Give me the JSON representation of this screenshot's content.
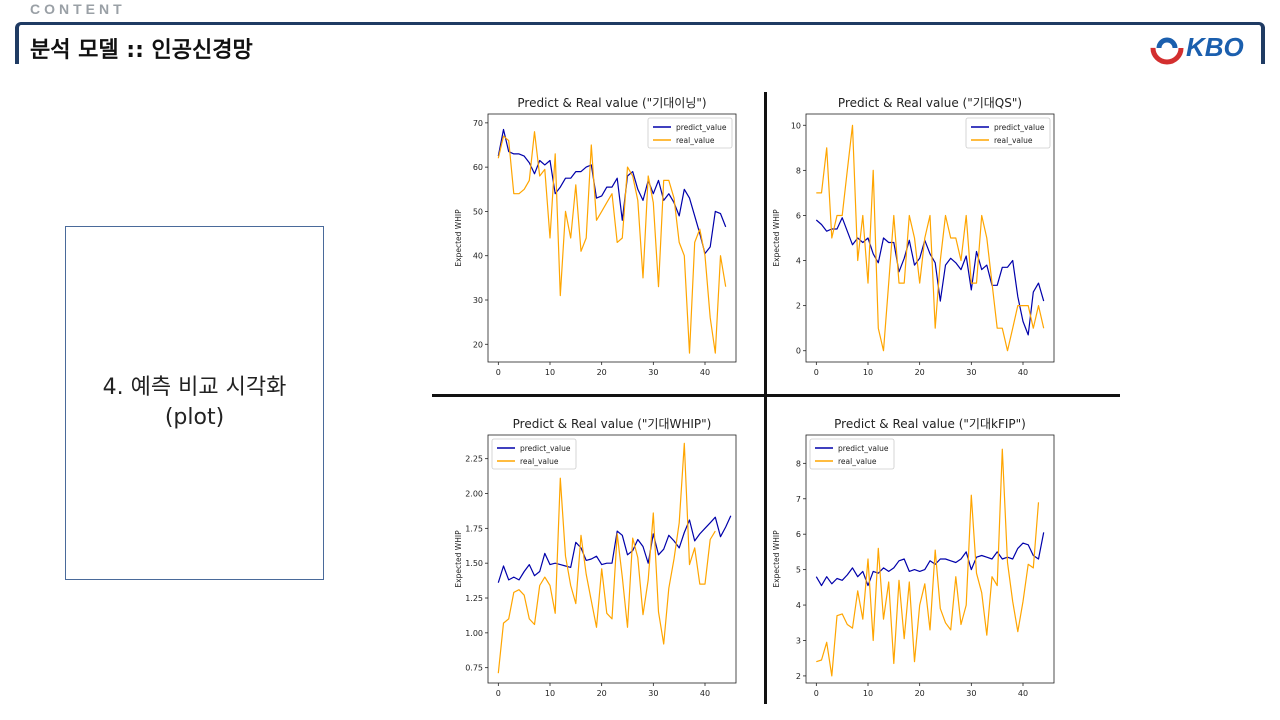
{
  "header": {
    "section_label": "CONTENT",
    "title": "분석 모델 :: 인공신경망",
    "logo_text": "KBO"
  },
  "sidebar": {
    "line1": "4. 예측 비교 시각화",
    "line2": "(plot)"
  },
  "colors": {
    "predict": "#0000aa",
    "real": "#ffa500",
    "header_accent": "#1f3b63"
  },
  "chart_data": [
    {
      "type": "line",
      "title": "Predict & Real value (\"기대이닝\")",
      "xlabel": "",
      "ylabel": "Expected WHIP",
      "xlim": [
        -2,
        46
      ],
      "ylim": [
        16,
        72
      ],
      "xticks": [
        0,
        10,
        20,
        30,
        40
      ],
      "xtick_labels": [
        "0",
        "10",
        "20",
        "30",
        "40"
      ],
      "yticks": [
        20,
        30,
        40,
        50,
        60,
        70
      ],
      "ytick_labels": [
        "20",
        "30",
        "40",
        "50",
        "60",
        "70"
      ],
      "legend": "top-right",
      "series": [
        {
          "name": "predict_value",
          "values": [
            62.5,
            68.5,
            63.5,
            63,
            63,
            62.5,
            61,
            58.5,
            61.5,
            60.5,
            61.5,
            54,
            55.5,
            57.5,
            57.5,
            59,
            59,
            60,
            60.5,
            53,
            53.5,
            55.5,
            55.5,
            57.5,
            48,
            58,
            59,
            55,
            52.5,
            57,
            54,
            57,
            52.5,
            54,
            52,
            49,
            55,
            53,
            49,
            45,
            40.5,
            42,
            50,
            49.5,
            46.5
          ]
        },
        {
          "name": "real_value",
          "values": [
            62,
            67,
            66,
            54,
            54,
            55,
            57,
            68,
            58,
            59.5,
            44,
            63,
            31,
            50,
            44,
            56,
            41,
            44,
            65,
            48,
            50,
            52,
            54,
            43,
            44,
            60,
            58,
            52.5,
            35,
            58,
            52,
            33,
            57,
            57,
            53,
            43,
            40,
            18,
            43,
            46,
            40,
            26,
            18,
            40,
            33
          ]
        }
      ]
    },
    {
      "type": "line",
      "title": "Predict & Real value (\"기대QS\")",
      "xlabel": "",
      "ylabel": "Expected WHIP",
      "xlim": [
        -2,
        46
      ],
      "ylim": [
        -0.5,
        10.5
      ],
      "xticks": [
        0,
        10,
        20,
        30,
        40
      ],
      "xtick_labels": [
        "0",
        "10",
        "20",
        "30",
        "40"
      ],
      "yticks": [
        0,
        2,
        4,
        6,
        8,
        10
      ],
      "ytick_labels": [
        "0",
        "2",
        "4",
        "6",
        "8",
        "10"
      ],
      "legend": "top-right",
      "series": [
        {
          "name": "predict_value",
          "values": [
            5.8,
            5.6,
            5.3,
            5.4,
            5.4,
            5.9,
            5.3,
            4.7,
            5,
            4.8,
            5,
            4.3,
            3.9,
            5,
            4.8,
            4.8,
            3.5,
            4.1,
            4.9,
            3.8,
            4.1,
            4.9,
            4.3,
            3.9,
            2.2,
            3.8,
            4.1,
            3.9,
            3.6,
            4.2,
            2.7,
            4.4,
            3.6,
            3.8,
            2.9,
            2.9,
            3.7,
            3.7,
            4,
            2.4,
            1.3,
            0.7,
            2.6,
            3,
            2.2
          ]
        },
        {
          "name": "real_value",
          "values": [
            7,
            7,
            9,
            5,
            6,
            6,
            8,
            10,
            4,
            6,
            3,
            8,
            1,
            0,
            3,
            6,
            3,
            3,
            6,
            5,
            3,
            5,
            6,
            1,
            4,
            6,
            5,
            5,
            4,
            6,
            3,
            3,
            6,
            5,
            3,
            1,
            1,
            0,
            1,
            2,
            2,
            2,
            1,
            2,
            1
          ]
        }
      ]
    },
    {
      "type": "line",
      "title": "Predict & Real value (\"기대WHIP\")",
      "xlabel": "",
      "ylabel": "Expected WHIP",
      "xlim": [
        -2,
        46
      ],
      "ylim": [
        0.64,
        2.42
      ],
      "xticks": [
        0,
        10,
        20,
        30,
        40
      ],
      "xtick_labels": [
        "0",
        "10",
        "20",
        "30",
        "40"
      ],
      "yticks": [
        0.75,
        1.0,
        1.25,
        1.5,
        1.75,
        2.0,
        2.25
      ],
      "ytick_labels": [
        "0.75",
        "1.00",
        "1.25",
        "1.50",
        "1.75",
        "2.00",
        "2.25"
      ],
      "legend": "top-left",
      "series": [
        {
          "name": "predict_value",
          "values": [
            1.36,
            1.48,
            1.38,
            1.4,
            1.38,
            1.44,
            1.49,
            1.41,
            1.44,
            1.57,
            1.49,
            1.5,
            1.49,
            1.48,
            1.47,
            1.65,
            1.61,
            1.52,
            1.53,
            1.55,
            1.49,
            1.5,
            1.5,
            1.73,
            1.7,
            1.56,
            1.59,
            1.67,
            1.62,
            1.5,
            1.71,
            1.56,
            1.6,
            1.7,
            1.66,
            1.61,
            1.72,
            1.81,
            1.66,
            1.71,
            1.75,
            1.79,
            1.83,
            1.69,
            1.76,
            1.84
          ]
        },
        {
          "name": "real_value",
          "values": [
            0.71,
            1.07,
            1.1,
            1.29,
            1.31,
            1.27,
            1.1,
            1.06,
            1.34,
            1.4,
            1.34,
            1.14,
            2.11,
            1.55,
            1.34,
            1.21,
            1.7,
            1.42,
            1.23,
            1.04,
            1.46,
            1.14,
            1.1,
            1.71,
            1.4,
            1.04,
            1.68,
            1.54,
            1.13,
            1.38,
            1.86,
            1.15,
            0.92,
            1.32,
            1.53,
            1.79,
            2.36,
            1.49,
            1.61,
            1.35,
            1.35,
            1.67,
            1.73
          ]
        }
      ]
    },
    {
      "type": "line",
      "title": "Predict & Real value (\"기대kFIP\")",
      "xlabel": "",
      "ylabel": "Expected WHIP",
      "xlim": [
        -2,
        46
      ],
      "ylim": [
        1.8,
        8.8
      ],
      "xticks": [
        0,
        10,
        20,
        30,
        40
      ],
      "xtick_labels": [
        "0",
        "10",
        "20",
        "30",
        "40"
      ],
      "yticks": [
        2,
        3,
        4,
        5,
        6,
        7,
        8
      ],
      "ytick_labels": [
        "2",
        "3",
        "4",
        "5",
        "6",
        "7",
        "8"
      ],
      "legend": "top-left",
      "series": [
        {
          "name": "predict_value",
          "values": [
            4.8,
            4.55,
            4.8,
            4.6,
            4.75,
            4.7,
            4.85,
            5.05,
            4.8,
            4.95,
            4.55,
            4.95,
            4.9,
            5.05,
            4.95,
            5.05,
            5.25,
            5.3,
            4.95,
            5,
            4.95,
            5,
            5.25,
            5.15,
            5.3,
            5.3,
            5.25,
            5.2,
            5.3,
            5.5,
            5,
            5.35,
            5.4,
            5.35,
            5.3,
            5.5,
            5.3,
            5.35,
            5.3,
            5.6,
            5.75,
            5.7,
            5.4,
            5.3,
            6.05
          ]
        },
        {
          "name": "real_value",
          "values": [
            2.4,
            2.45,
            2.95,
            2,
            3.7,
            3.75,
            3.45,
            3.35,
            4.4,
            3.6,
            5.3,
            3,
            5.6,
            3.6,
            4.65,
            2.35,
            4.7,
            3.05,
            4.65,
            2.4,
            4,
            4.6,
            3.3,
            5.55,
            3.9,
            3.5,
            3.3,
            4.8,
            3.45,
            4,
            7.1,
            4.9,
            4.35,
            3.15,
            4.8,
            4.55,
            8.4,
            5.2,
            4.1,
            3.25,
            4.1,
            5.15,
            5.05,
            6.9
          ]
        }
      ]
    }
  ]
}
